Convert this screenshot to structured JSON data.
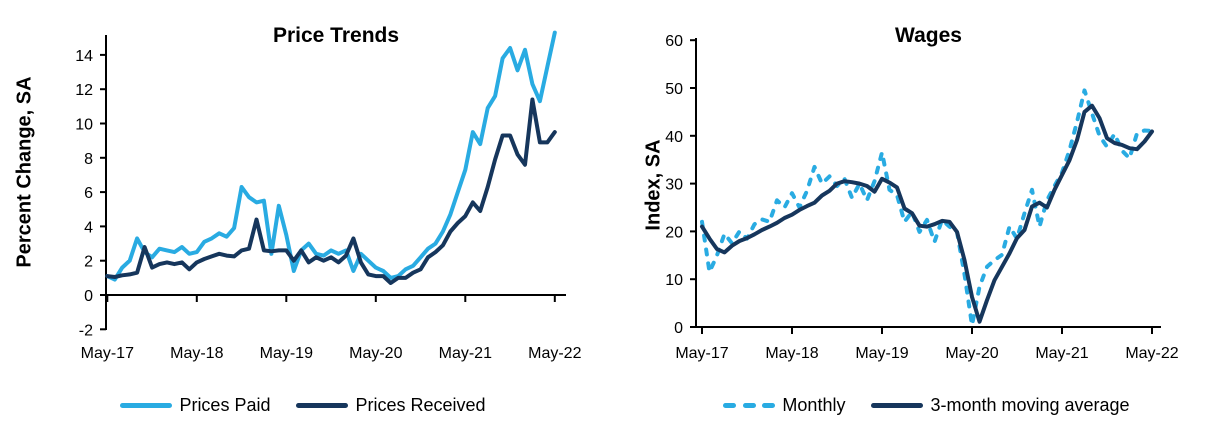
{
  "page": {
    "background": "#ffffff",
    "text_color": "#000000",
    "axis_color": "#000000"
  },
  "chart_data": [
    {
      "type": "line",
      "title": "Price Trends",
      "ylabel": "Percent Change, SA",
      "xlabel": "",
      "x_frequency": "monthly",
      "x_start": "May-17",
      "x_end": "May-22",
      "x_tick_labels": [
        "May-17",
        "May-18",
        "May-19",
        "May-20",
        "May-21",
        "May-22"
      ],
      "y_ticks": [
        -2,
        0,
        2,
        4,
        6,
        8,
        10,
        12,
        14
      ],
      "ylim": [
        -2,
        14
      ],
      "grid": false,
      "legend_position": "bottom",
      "series": [
        {
          "name": "Prices Paid",
          "color": "#29ABE2",
          "style": "solid",
          "values": [
            1.1,
            0.9,
            1.6,
            2.0,
            3.3,
            2.5,
            2.2,
            2.7,
            2.6,
            2.5,
            2.8,
            2.4,
            2.5,
            3.1,
            3.3,
            3.6,
            3.4,
            3.9,
            6.3,
            5.7,
            5.4,
            5.5,
            2.4,
            5.2,
            3.5,
            1.4,
            2.6,
            3.0,
            2.4,
            2.3,
            2.6,
            2.4,
            2.6,
            1.4,
            2.4,
            2.0,
            1.6,
            1.4,
            1.0,
            1.1,
            1.5,
            1.7,
            2.2,
            2.7,
            3.0,
            3.7,
            4.7,
            6.0,
            7.3,
            9.5,
            8.8,
            10.9,
            11.6,
            13.8,
            14.4,
            13.1,
            14.3,
            12.3,
            11.3,
            13.3,
            15.3
          ]
        },
        {
          "name": "Prices Received",
          "color": "#16365C",
          "style": "solid",
          "values": [
            1.1,
            1.05,
            1.15,
            1.2,
            1.3,
            2.8,
            1.6,
            1.8,
            1.9,
            1.8,
            1.9,
            1.5,
            1.9,
            2.1,
            2.25,
            2.4,
            2.3,
            2.25,
            2.6,
            2.7,
            4.4,
            2.6,
            2.55,
            2.6,
            2.6,
            2.0,
            2.6,
            1.9,
            2.2,
            2.0,
            2.2,
            1.9,
            2.3,
            3.3,
            1.9,
            1.2,
            1.1,
            1.1,
            0.7,
            1.0,
            1.0,
            1.3,
            1.5,
            2.2,
            2.5,
            2.9,
            3.7,
            4.2,
            4.6,
            5.4,
            4.9,
            6.3,
            7.9,
            9.3,
            9.3,
            8.2,
            7.6,
            11.4,
            8.9,
            8.9,
            9.5
          ]
        }
      ]
    },
    {
      "type": "line",
      "title": "Wages",
      "ylabel": "Index, SA",
      "xlabel": "",
      "x_frequency": "monthly",
      "x_start": "May-17",
      "x_end": "May-22",
      "x_tick_labels": [
        "May-17",
        "May-18",
        "May-19",
        "May-20",
        "May-21",
        "May-22"
      ],
      "y_ticks": [
        0,
        10,
        20,
        30,
        40,
        50,
        60
      ],
      "ylim": [
        0,
        60
      ],
      "grid": false,
      "legend_position": "bottom",
      "series": [
        {
          "name": "Monthly",
          "color": "#29ABE2",
          "style": "dashed",
          "values": [
            22,
            11.5,
            15,
            19.5,
            17.5,
            20,
            18.5,
            21.5,
            22.5,
            22,
            26.5,
            25,
            28,
            25,
            28.5,
            33.5,
            30,
            31.5,
            29.5,
            31,
            27,
            30,
            26.5,
            30.5,
            36.5,
            28.7,
            27.6,
            22,
            24.1,
            19.9,
            22.4,
            17.8,
            22.4,
            21,
            19.9,
            11,
            0.4,
            8.4,
            12.6,
            14,
            15.1,
            21,
            18.5,
            23.8,
            28.7,
            21,
            26.5,
            29.5,
            32.3,
            37,
            42.9,
            49.5,
            44.7,
            40,
            37.7,
            40.4,
            36.9,
            35.3,
            40.5,
            41.1,
            41
          ]
        },
        {
          "name": "3-month moving average",
          "color": "#16365C",
          "style": "solid",
          "values": [
            21,
            18.5,
            16.3,
            15.6,
            17,
            18,
            18.6,
            19.4,
            20.3,
            21,
            21.8,
            22.8,
            23.5,
            24.5,
            25.3,
            26,
            27.5,
            28.5,
            30,
            30.5,
            30.3,
            30,
            29.5,
            28.3,
            31,
            30.2,
            29.2,
            24.8,
            23.8,
            21.2,
            21,
            21.5,
            22.2,
            22,
            19.9,
            14,
            6.3,
            1.1,
            5.6,
            9.8,
            12.6,
            15.4,
            18.6,
            20.3,
            25.2,
            26,
            25,
            28.7,
            31.8,
            34.9,
            39.1,
            45,
            46.3,
            43.7,
            39.5,
            38.5,
            38.1,
            37.4,
            37.2,
            38.8,
            40.9
          ]
        }
      ]
    }
  ]
}
